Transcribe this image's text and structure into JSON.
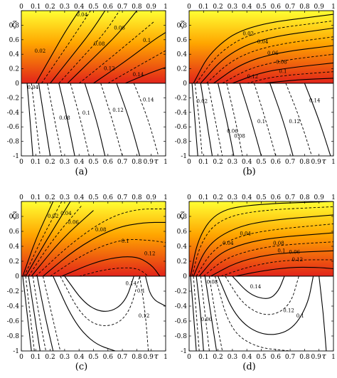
{
  "chart_data": [
    {
      "type": "contour",
      "panel_label": "(a)",
      "xlabel": "τ",
      "ylabel": "ζ",
      "xlim": [
        0,
        1
      ],
      "ylim": [
        -1,
        1
      ],
      "x_ticks": [
        "0",
        "0.1",
        "0.2",
        "0.3",
        "0.4",
        "0.5",
        "0.6",
        "0.7",
        "0.8",
        "0.9",
        "1"
      ],
      "y_ticks": [
        "1",
        "0.8",
        "0.6",
        "0.4",
        "0.2",
        "0",
        "-0.2",
        "-0.4",
        "-0.6",
        "-0.8",
        "-1"
      ],
      "upper_gradient": {
        "top": "#ffff33",
        "bottom": "#e2231a"
      },
      "upper_labels": [
        {
          "text": "0.02",
          "x": 0.13,
          "y": 0.42
        },
        {
          "text": "0.04",
          "x": 0.42,
          "y": 0.92
        },
        {
          "text": "0.06",
          "x": 0.68,
          "y": 0.74
        },
        {
          "text": "0.08",
          "x": 0.54,
          "y": 0.52
        },
        {
          "text": "0.1",
          "x": 0.87,
          "y": 0.57
        },
        {
          "text": "0.12",
          "x": 0.61,
          "y": 0.18
        },
        {
          "text": "0.14",
          "x": 0.81,
          "y": 0.1
        }
      ],
      "lower_labels": [
        {
          "text": "0.04",
          "x": 0.08,
          "y": -0.08
        },
        {
          "text": "0.08",
          "x": 0.3,
          "y": -0.5
        },
        {
          "text": "0.1",
          "x": 0.45,
          "y": -0.43
        },
        {
          "text": "0.12",
          "x": 0.67,
          "y": -0.39
        },
        {
          "text": "0.14",
          "x": 0.88,
          "y": -0.25
        }
      ]
    },
    {
      "type": "contour",
      "panel_label": "(b)",
      "xlabel": "τ",
      "ylabel": "ζ",
      "xlim": [
        0,
        1
      ],
      "ylim": [
        -1,
        1
      ],
      "x_ticks": [
        "0",
        "0.1",
        "0.2",
        "0.3",
        "0.4",
        "0.5",
        "0.6",
        "0.7",
        "0.8",
        "0.9",
        "1"
      ],
      "y_ticks": [
        "1",
        "0.8",
        "0.6",
        "0.4",
        "0.2",
        "0",
        "-0.2",
        "-0.4",
        "-0.6",
        "-0.8",
        "-1"
      ],
      "upper_gradient": {
        "top": "#ffff33",
        "bottom": "#e2231a"
      },
      "upper_labels": [
        {
          "text": "0.02",
          "x": 0.41,
          "y": 0.66
        },
        {
          "text": "0.04",
          "x": 0.51,
          "y": 0.55
        },
        {
          "text": "0.06",
          "x": 0.58,
          "y": 0.39
        },
        {
          "text": "0.08",
          "x": 0.64,
          "y": 0.27
        },
        {
          "text": "0.1",
          "x": 0.65,
          "y": 0.14
        },
        {
          "text": "0.12",
          "x": 0.44,
          "y": 0.07
        }
      ],
      "lower_labels": [
        {
          "text": "0.02",
          "x": 0.09,
          "y": -0.27
        },
        {
          "text": "0.06",
          "x": 0.3,
          "y": -0.68
        },
        {
          "text": "0.08",
          "x": 0.35,
          "y": -0.75
        },
        {
          "text": "0.1",
          "x": 0.5,
          "y": -0.55
        },
        {
          "text": "0.12",
          "x": 0.73,
          "y": -0.55
        },
        {
          "text": "0.14",
          "x": 0.87,
          "y": -0.26
        }
      ]
    },
    {
      "type": "contour",
      "panel_label": "(c)",
      "xlabel": "τ",
      "ylabel": "ζ",
      "xlim": [
        0,
        1
      ],
      "ylim": [
        -1,
        1
      ],
      "x_ticks": [
        "0",
        "0.1",
        "0.2",
        "0.3",
        "0.4",
        "0.5",
        "0.6",
        "0.7",
        "0.8",
        "0.9",
        "1"
      ],
      "y_ticks": [
        "1",
        "0.8",
        "0.6",
        "0.4",
        "0.2",
        "0",
        "-0.2",
        "-0.4",
        "-0.6",
        "-0.8",
        "-1"
      ],
      "upper_gradient": {
        "top": "#ffff33",
        "bottom": "#e2231a"
      },
      "upper_labels": [
        {
          "text": "0.02",
          "x": 0.22,
          "y": 0.78
        },
        {
          "text": "0.04",
          "x": 0.31,
          "y": 0.82
        },
        {
          "text": "0.06",
          "x": 0.36,
          "y": 0.7
        },
        {
          "text": "0.08",
          "x": 0.55,
          "y": 0.6
        },
        {
          "text": "0.1",
          "x": 0.72,
          "y": 0.45
        },
        {
          "text": "0.12",
          "x": 0.89,
          "y": 0.28
        }
      ],
      "lower_labels": [
        {
          "text": "0.14",
          "x": 0.76,
          "y": -0.12
        },
        {
          "text": "0.1",
          "x": 0.83,
          "y": -0.22
        },
        {
          "text": "0.12",
          "x": 0.85,
          "y": -0.55
        }
      ]
    },
    {
      "type": "contour",
      "panel_label": "(d)",
      "xlabel": "τ",
      "ylabel": "ζ",
      "xlim": [
        0,
        1
      ],
      "ylim": [
        -1,
        1
      ],
      "x_ticks": [
        "0",
        "0.1",
        "0.2",
        "0.3",
        "0.4",
        "0.5",
        "0.6",
        "0.7",
        "0.8",
        "0.9",
        "1"
      ],
      "y_ticks": [
        "1",
        "0.8",
        "0.6",
        "0.4",
        "0.2",
        "0",
        "-0.2",
        "-0.4",
        "-0.6",
        "-0.8",
        "-1"
      ],
      "upper_gradient": {
        "top": "#ffff33",
        "bottom": "#e2231a"
      },
      "upper_labels": [
        {
          "text": "0.04",
          "x": 0.27,
          "y": 0.42
        },
        {
          "text": "0.04",
          "x": 0.39,
          "y": 0.55
        },
        {
          "text": "0.08",
          "x": 0.62,
          "y": 0.42
        },
        {
          "text": "0.1",
          "x": 0.64,
          "y": 0.32
        },
        {
          "text": "0.06",
          "x": 0.73,
          "y": 0.3
        },
        {
          "text": "0.12",
          "x": 0.75,
          "y": 0.2
        }
      ],
      "lower_labels": [
        {
          "text": "0.08",
          "x": 0.16,
          "y": -0.1
        },
        {
          "text": "0.06",
          "x": 0.12,
          "y": -0.6
        },
        {
          "text": "0.14",
          "x": 0.46,
          "y": -0.16
        },
        {
          "text": "0.12",
          "x": 0.69,
          "y": -0.48
        },
        {
          "text": "0.1",
          "x": 0.77,
          "y": -0.55
        }
      ]
    }
  ]
}
